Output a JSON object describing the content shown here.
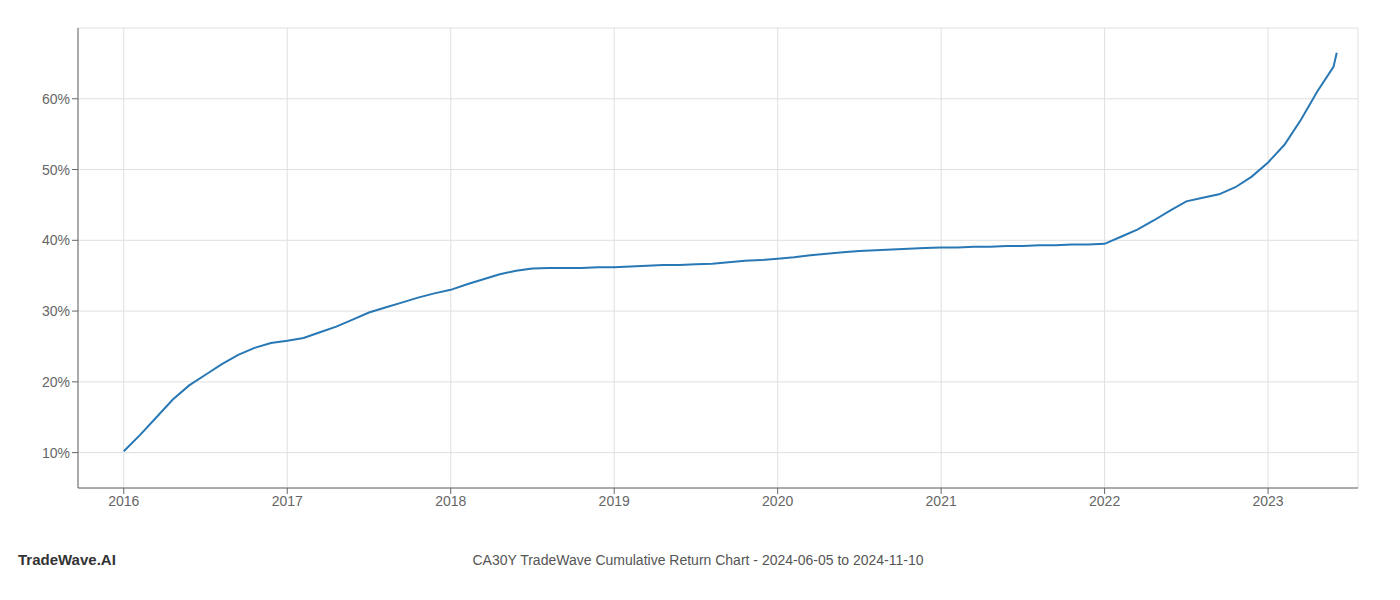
{
  "chart_data": {
    "type": "line",
    "title": "CA30Y TradeWave Cumulative Return Chart - 2024-06-05 to 2024-11-10",
    "annotations": [
      "TradeWave.AI"
    ],
    "color": "#2878b5",
    "grid": true,
    "xlim": [
      2015.72,
      2023.55
    ],
    "xticks": [
      2016,
      2017,
      2018,
      2019,
      2020,
      2021,
      2022,
      2023
    ],
    "ylim": [
      5,
      70
    ],
    "yticks": [
      {
        "value": 10,
        "label": "10%"
      },
      {
        "value": 20,
        "label": "20%"
      },
      {
        "value": 30,
        "label": "30%"
      },
      {
        "value": 40,
        "label": "40%"
      },
      {
        "value": 50,
        "label": "50%"
      },
      {
        "value": 60,
        "label": "60%"
      }
    ],
    "x": [
      2016.0,
      2016.1,
      2016.2,
      2016.3,
      2016.4,
      2016.5,
      2016.6,
      2016.7,
      2016.8,
      2016.9,
      2017.0,
      2017.1,
      2017.2,
      2017.3,
      2017.4,
      2017.5,
      2017.6,
      2017.7,
      2017.8,
      2017.9,
      2018.0,
      2018.1,
      2018.2,
      2018.3,
      2018.4,
      2018.5,
      2018.6,
      2018.7,
      2018.8,
      2018.9,
      2019.0,
      2019.1,
      2019.2,
      2019.3,
      2019.4,
      2019.5,
      2019.6,
      2019.7,
      2019.8,
      2019.9,
      2020.0,
      2020.1,
      2020.2,
      2020.3,
      2020.4,
      2020.5,
      2020.6,
      2020.7,
      2020.8,
      2020.9,
      2021.0,
      2021.1,
      2021.2,
      2021.3,
      2021.4,
      2021.5,
      2021.6,
      2021.7,
      2021.8,
      2021.9,
      2022.0,
      2022.1,
      2022.2,
      2022.3,
      2022.4,
      2022.5,
      2022.6,
      2022.7,
      2022.8,
      2022.9,
      2023.0,
      2023.1,
      2023.2,
      2023.3,
      2023.4,
      2023.42
    ],
    "values": [
      10.2,
      12.5,
      15.0,
      17.5,
      19.5,
      21.0,
      22.5,
      23.8,
      24.8,
      25.5,
      25.8,
      26.2,
      27.0,
      27.8,
      28.8,
      29.8,
      30.5,
      31.2,
      31.9,
      32.5,
      33.0,
      33.8,
      34.5,
      35.2,
      35.7,
      36.0,
      36.1,
      36.1,
      36.1,
      36.2,
      36.2,
      36.3,
      36.4,
      36.5,
      36.5,
      36.6,
      36.7,
      36.9,
      37.1,
      37.2,
      37.4,
      37.6,
      37.9,
      38.1,
      38.3,
      38.5,
      38.6,
      38.7,
      38.8,
      38.9,
      39.0,
      39.0,
      39.1,
      39.1,
      39.2,
      39.2,
      39.3,
      39.3,
      39.4,
      39.4,
      39.5,
      40.5,
      41.5,
      42.8,
      44.2,
      45.5,
      46.0,
      46.5,
      47.5,
      49.0,
      51.0,
      53.5,
      57.0,
      61.0,
      64.5,
      66.5
    ]
  }
}
